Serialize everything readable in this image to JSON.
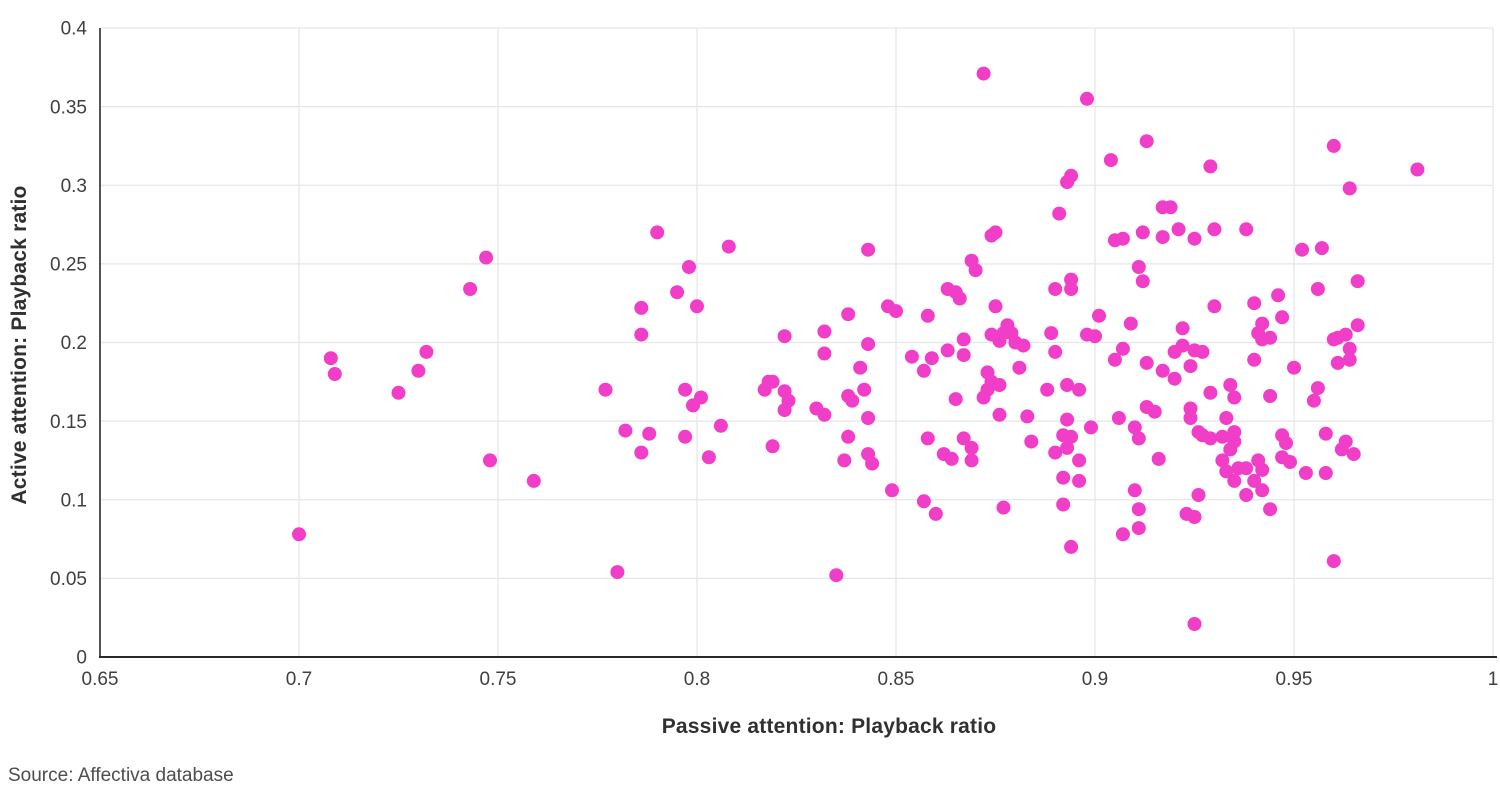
{
  "source_note": "Source: Affectiva database",
  "colors": {
    "point": "#F03EC8",
    "gridline": "#E6E6E6",
    "axis_line": "#2B2A29",
    "tick_label": "#3F3F3F",
    "axis_title": "#303030",
    "source_text": "#4D4D4D",
    "background": "#FFFFFF"
  },
  "chart_data": {
    "type": "scatter",
    "title": "",
    "xlabel": "Passive attention: Playback ratio",
    "ylabel": "Active attention: Playback ratio",
    "xlim": [
      0.65,
      1.0
    ],
    "ylim": [
      0,
      0.4
    ],
    "x_ticks": [
      0.65,
      0.7,
      0.75,
      0.8,
      0.85,
      0.9,
      0.95,
      1.0
    ],
    "x_tick_labels": [
      "0.65",
      "0.7",
      "0.75",
      "0.8",
      "0.85",
      "0.9",
      "0.95",
      "1"
    ],
    "y_ticks": [
      0,
      0.05,
      0.1,
      0.15,
      0.2,
      0.25,
      0.3,
      0.35,
      0.4
    ],
    "y_tick_labels": [
      "0",
      "0.05",
      "0.1",
      "0.15",
      "0.2",
      "0.25",
      "0.3",
      "0.35",
      "0.4"
    ],
    "grid": true,
    "legend_position": "none",
    "point_radius": 7,
    "points": [
      [
        0.7,
        0.078
      ],
      [
        0.708,
        0.19
      ],
      [
        0.709,
        0.18
      ],
      [
        0.725,
        0.168
      ],
      [
        0.73,
        0.182
      ],
      [
        0.732,
        0.194
      ],
      [
        0.743,
        0.234
      ],
      [
        0.747,
        0.254
      ],
      [
        0.748,
        0.125
      ],
      [
        0.759,
        0.112
      ],
      [
        0.777,
        0.17
      ],
      [
        0.78,
        0.054
      ],
      [
        0.782,
        0.144
      ],
      [
        0.786,
        0.222
      ],
      [
        0.786,
        0.205
      ],
      [
        0.786,
        0.13
      ],
      [
        0.788,
        0.142
      ],
      [
        0.79,
        0.27
      ],
      [
        0.795,
        0.232
      ],
      [
        0.797,
        0.17
      ],
      [
        0.797,
        0.14
      ],
      [
        0.798,
        0.248
      ],
      [
        0.799,
        0.16
      ],
      [
        0.8,
        0.223
      ],
      [
        0.801,
        0.165
      ],
      [
        0.803,
        0.127
      ],
      [
        0.806,
        0.147
      ],
      [
        0.808,
        0.261
      ],
      [
        0.817,
        0.17
      ],
      [
        0.818,
        0.175
      ],
      [
        0.819,
        0.175
      ],
      [
        0.819,
        0.134
      ],
      [
        0.822,
        0.204
      ],
      [
        0.822,
        0.169
      ],
      [
        0.822,
        0.157
      ],
      [
        0.823,
        0.163
      ],
      [
        0.83,
        0.158
      ],
      [
        0.832,
        0.207
      ],
      [
        0.832,
        0.193
      ],
      [
        0.832,
        0.154
      ],
      [
        0.835,
        0.052
      ],
      [
        0.837,
        0.125
      ],
      [
        0.838,
        0.218
      ],
      [
        0.838,
        0.166
      ],
      [
        0.838,
        0.14
      ],
      [
        0.839,
        0.163
      ],
      [
        0.841,
        0.184
      ],
      [
        0.842,
        0.17
      ],
      [
        0.843,
        0.259
      ],
      [
        0.843,
        0.199
      ],
      [
        0.843,
        0.152
      ],
      [
        0.843,
        0.129
      ],
      [
        0.844,
        0.123
      ],
      [
        0.848,
        0.223
      ],
      [
        0.849,
        0.106
      ],
      [
        0.85,
        0.22
      ],
      [
        0.854,
        0.191
      ],
      [
        0.857,
        0.182
      ],
      [
        0.857,
        0.099
      ],
      [
        0.858,
        0.217
      ],
      [
        0.858,
        0.139
      ],
      [
        0.859,
        0.19
      ],
      [
        0.86,
        0.091
      ],
      [
        0.862,
        0.129
      ],
      [
        0.863,
        0.234
      ],
      [
        0.863,
        0.195
      ],
      [
        0.864,
        0.126
      ],
      [
        0.865,
        0.232
      ],
      [
        0.865,
        0.164
      ],
      [
        0.866,
        0.228
      ],
      [
        0.867,
        0.202
      ],
      [
        0.867,
        0.192
      ],
      [
        0.867,
        0.139
      ],
      [
        0.869,
        0.252
      ],
      [
        0.869,
        0.133
      ],
      [
        0.869,
        0.125
      ],
      [
        0.87,
        0.246
      ],
      [
        0.872,
        0.371
      ],
      [
        0.872,
        0.165
      ],
      [
        0.873,
        0.181
      ],
      [
        0.873,
        0.17
      ],
      [
        0.874,
        0.268
      ],
      [
        0.874,
        0.205
      ],
      [
        0.874,
        0.175
      ],
      [
        0.875,
        0.27
      ],
      [
        0.875,
        0.223
      ],
      [
        0.876,
        0.201
      ],
      [
        0.876,
        0.173
      ],
      [
        0.876,
        0.154
      ],
      [
        0.877,
        0.206
      ],
      [
        0.877,
        0.095
      ],
      [
        0.878,
        0.211
      ],
      [
        0.879,
        0.206
      ],
      [
        0.88,
        0.2
      ],
      [
        0.881,
        0.184
      ],
      [
        0.882,
        0.198
      ],
      [
        0.883,
        0.153
      ],
      [
        0.884,
        0.137
      ],
      [
        0.888,
        0.17
      ],
      [
        0.889,
        0.206
      ],
      [
        0.89,
        0.234
      ],
      [
        0.89,
        0.194
      ],
      [
        0.89,
        0.13
      ],
      [
        0.891,
        0.282
      ],
      [
        0.892,
        0.141
      ],
      [
        0.892,
        0.114
      ],
      [
        0.892,
        0.097
      ],
      [
        0.893,
        0.302
      ],
      [
        0.893,
        0.173
      ],
      [
        0.893,
        0.151
      ],
      [
        0.893,
        0.133
      ],
      [
        0.894,
        0.306
      ],
      [
        0.894,
        0.24
      ],
      [
        0.894,
        0.234
      ],
      [
        0.894,
        0.14
      ],
      [
        0.894,
        0.07
      ],
      [
        0.896,
        0.17
      ],
      [
        0.896,
        0.125
      ],
      [
        0.896,
        0.112
      ],
      [
        0.898,
        0.355
      ],
      [
        0.898,
        0.205
      ],
      [
        0.899,
        0.146
      ],
      [
        0.9,
        0.204
      ],
      [
        0.901,
        0.217
      ],
      [
        0.904,
        0.316
      ],
      [
        0.905,
        0.265
      ],
      [
        0.905,
        0.189
      ],
      [
        0.906,
        0.152
      ],
      [
        0.907,
        0.266
      ],
      [
        0.907,
        0.196
      ],
      [
        0.907,
        0.078
      ],
      [
        0.909,
        0.212
      ],
      [
        0.91,
        0.146
      ],
      [
        0.91,
        0.106
      ],
      [
        0.911,
        0.248
      ],
      [
        0.911,
        0.139
      ],
      [
        0.911,
        0.094
      ],
      [
        0.911,
        0.082
      ],
      [
        0.912,
        0.27
      ],
      [
        0.912,
        0.239
      ],
      [
        0.913,
        0.328
      ],
      [
        0.913,
        0.187
      ],
      [
        0.913,
        0.159
      ],
      [
        0.915,
        0.156
      ],
      [
        0.916,
        0.126
      ],
      [
        0.917,
        0.286
      ],
      [
        0.917,
        0.267
      ],
      [
        0.917,
        0.182
      ],
      [
        0.919,
        0.286
      ],
      [
        0.92,
        0.194
      ],
      [
        0.92,
        0.177
      ],
      [
        0.921,
        0.272
      ],
      [
        0.922,
        0.209
      ],
      [
        0.922,
        0.198
      ],
      [
        0.923,
        0.091
      ],
      [
        0.924,
        0.185
      ],
      [
        0.924,
        0.158
      ],
      [
        0.924,
        0.152
      ],
      [
        0.925,
        0.266
      ],
      [
        0.925,
        0.195
      ],
      [
        0.925,
        0.089
      ],
      [
        0.925,
        0.021
      ],
      [
        0.926,
        0.143
      ],
      [
        0.926,
        0.103
      ],
      [
        0.927,
        0.194
      ],
      [
        0.927,
        0.141
      ],
      [
        0.929,
        0.312
      ],
      [
        0.929,
        0.168
      ],
      [
        0.929,
        0.139
      ],
      [
        0.93,
        0.272
      ],
      [
        0.93,
        0.223
      ],
      [
        0.932,
        0.14
      ],
      [
        0.932,
        0.125
      ],
      [
        0.933,
        0.152
      ],
      [
        0.933,
        0.118
      ],
      [
        0.934,
        0.173
      ],
      [
        0.934,
        0.132
      ],
      [
        0.935,
        0.165
      ],
      [
        0.935,
        0.143
      ],
      [
        0.935,
        0.137
      ],
      [
        0.935,
        0.112
      ],
      [
        0.936,
        0.12
      ],
      [
        0.938,
        0.272
      ],
      [
        0.938,
        0.12
      ],
      [
        0.938,
        0.103
      ],
      [
        0.94,
        0.225
      ],
      [
        0.94,
        0.189
      ],
      [
        0.94,
        0.112
      ],
      [
        0.941,
        0.206
      ],
      [
        0.941,
        0.125
      ],
      [
        0.942,
        0.212
      ],
      [
        0.942,
        0.202
      ],
      [
        0.942,
        0.119
      ],
      [
        0.942,
        0.106
      ],
      [
        0.944,
        0.203
      ],
      [
        0.944,
        0.166
      ],
      [
        0.944,
        0.094
      ],
      [
        0.946,
        0.23
      ],
      [
        0.947,
        0.216
      ],
      [
        0.947,
        0.141
      ],
      [
        0.947,
        0.127
      ],
      [
        0.948,
        0.136
      ],
      [
        0.949,
        0.124
      ],
      [
        0.95,
        0.184
      ],
      [
        0.952,
        0.259
      ],
      [
        0.953,
        0.117
      ],
      [
        0.955,
        0.163
      ],
      [
        0.956,
        0.234
      ],
      [
        0.956,
        0.171
      ],
      [
        0.957,
        0.26
      ],
      [
        0.958,
        0.142
      ],
      [
        0.958,
        0.117
      ],
      [
        0.96,
        0.325
      ],
      [
        0.96,
        0.202
      ],
      [
        0.96,
        0.061
      ],
      [
        0.961,
        0.203
      ],
      [
        0.961,
        0.187
      ],
      [
        0.962,
        0.132
      ],
      [
        0.963,
        0.205
      ],
      [
        0.963,
        0.137
      ],
      [
        0.964,
        0.298
      ],
      [
        0.964,
        0.196
      ],
      [
        0.964,
        0.189
      ],
      [
        0.965,
        0.129
      ],
      [
        0.966,
        0.239
      ],
      [
        0.966,
        0.211
      ],
      [
        0.981,
        0.31
      ]
    ]
  }
}
